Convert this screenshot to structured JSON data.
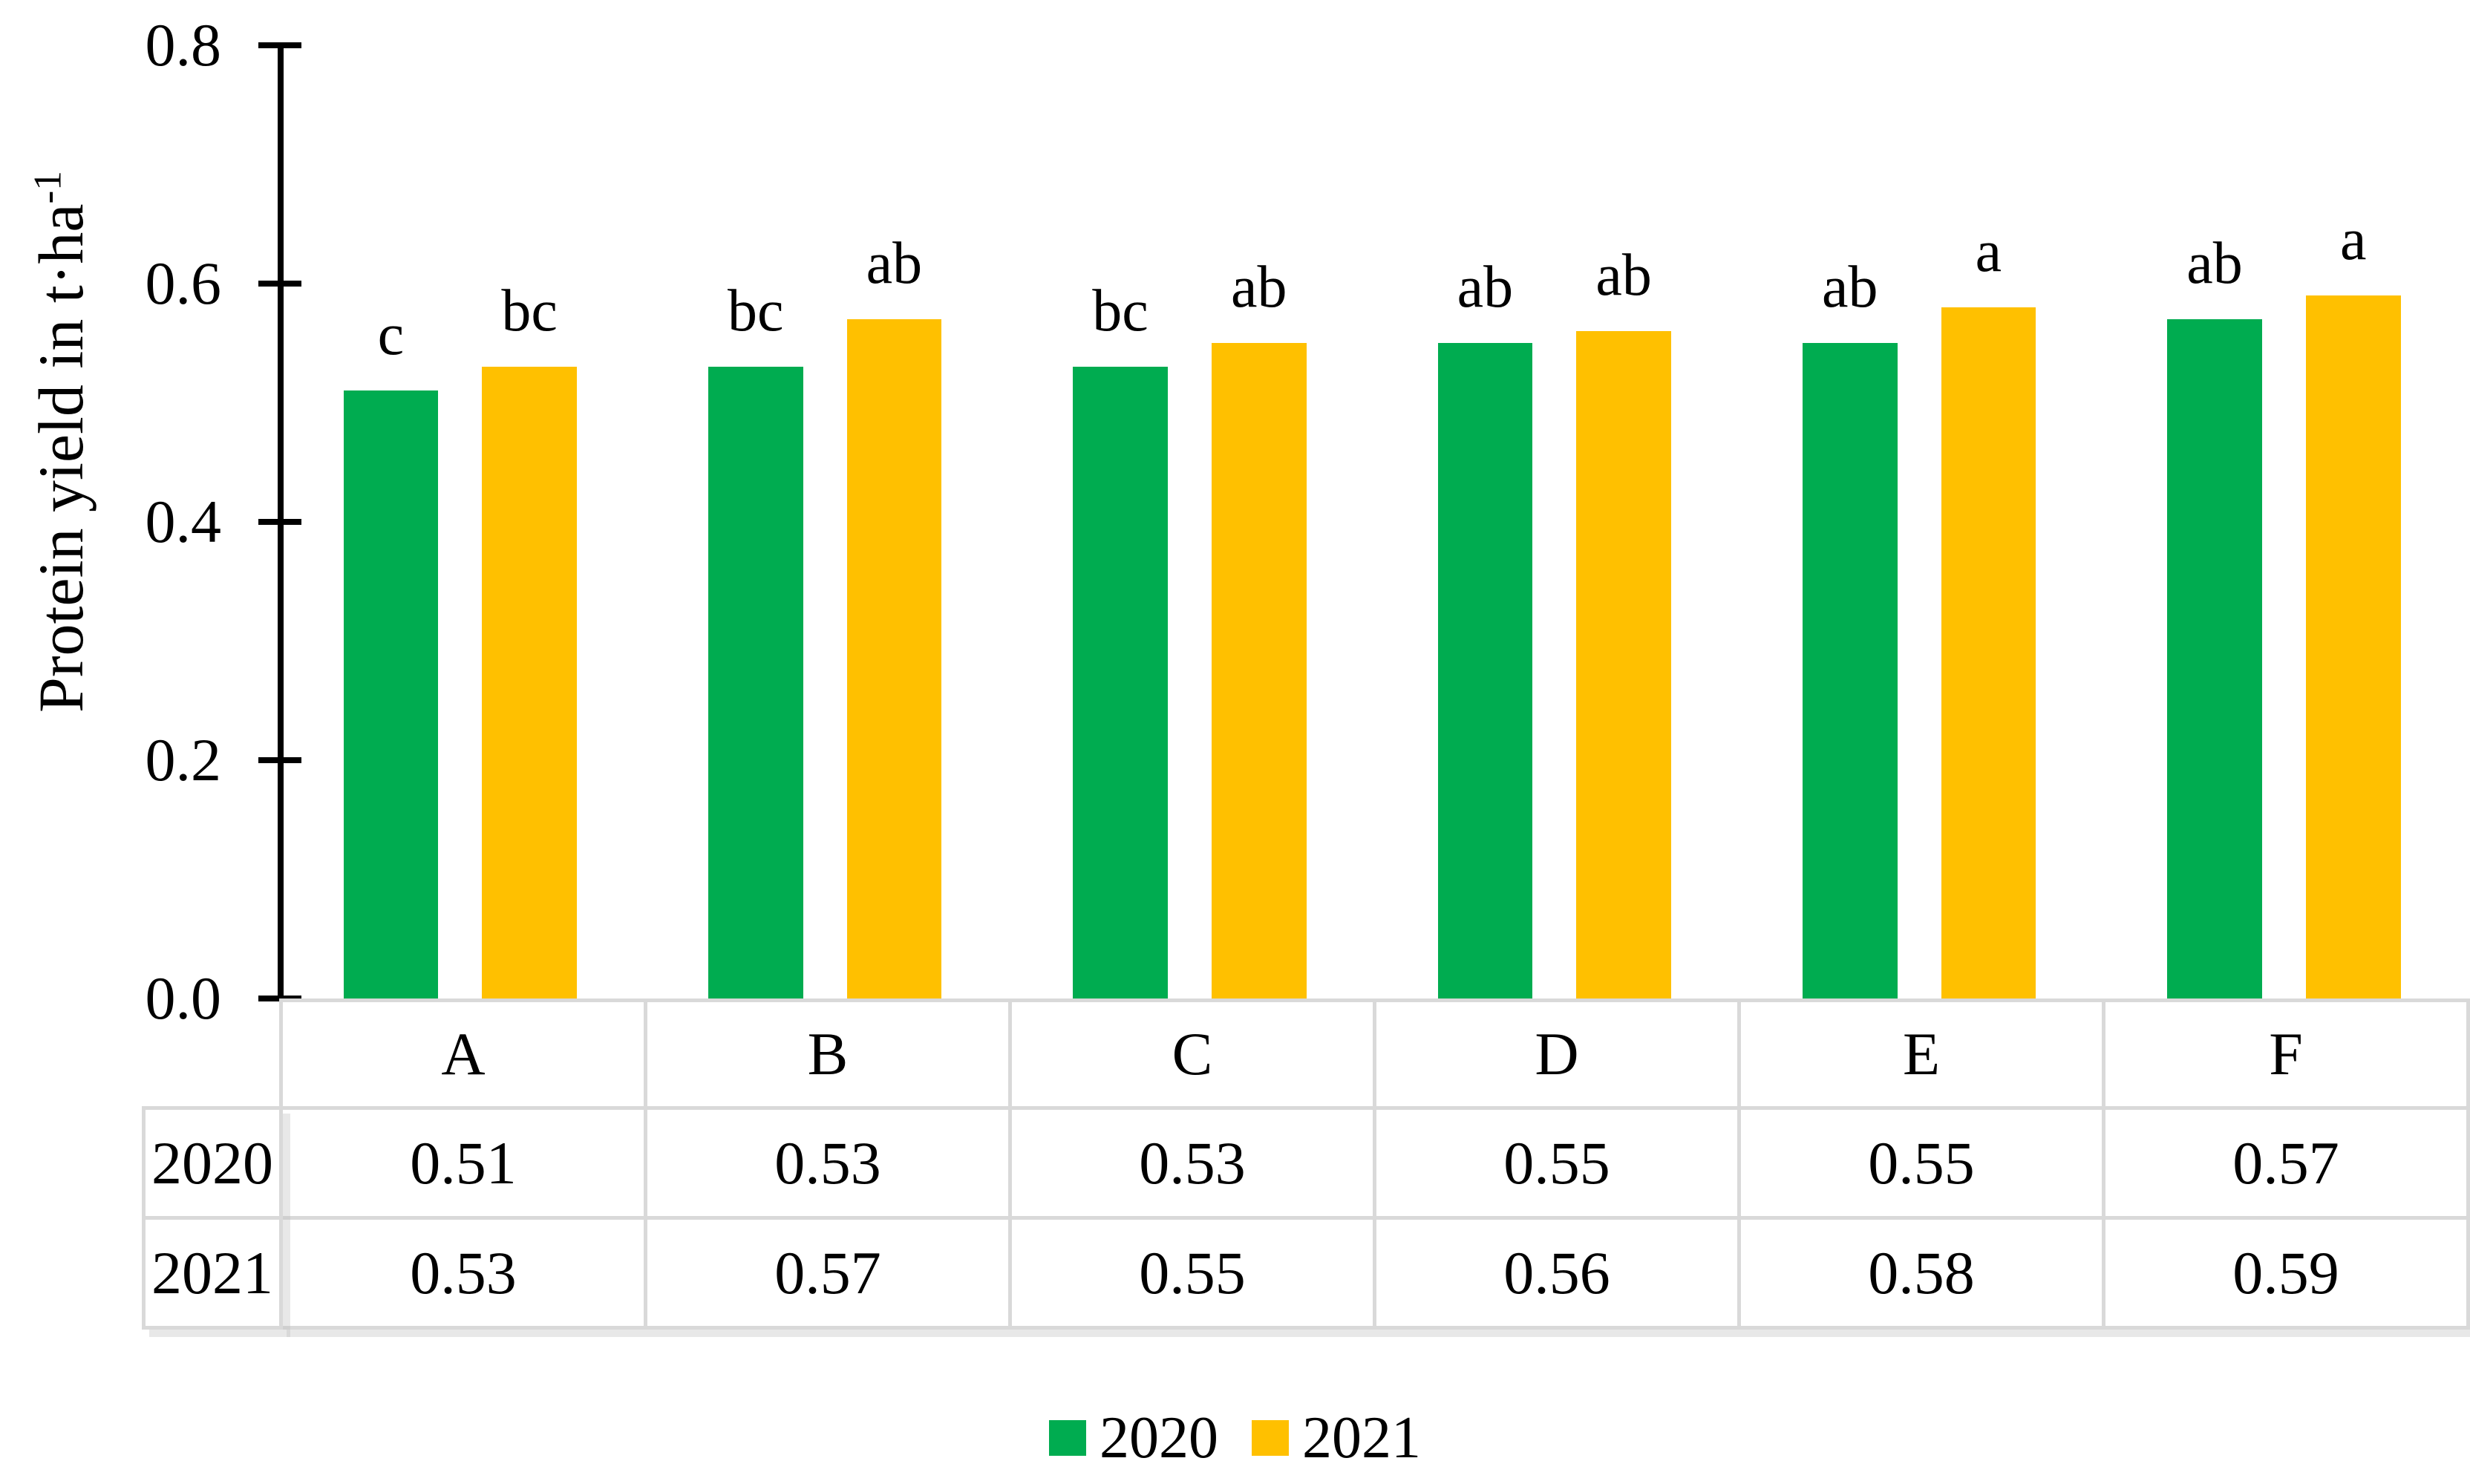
{
  "figure": {
    "background": "#FFFFFF",
    "text_color": "#000000",
    "table_border_color": "#D9D9D9"
  },
  "chart_data": {
    "type": "bar",
    "title": "",
    "xlabel": "",
    "ylabel": "Protein yield in t·ha⁻¹",
    "ylabel_main": "Protein yield in t·ha",
    "ylabel_sup": "-1",
    "ylim": [
      0.0,
      0.8
    ],
    "ytick_values": [
      0.8,
      0.6,
      0.4,
      0.2,
      0.0
    ],
    "ytick_labels": [
      "0.8",
      "0.6",
      "0.4",
      "0.2",
      "0.0"
    ],
    "categories": [
      "A",
      "B",
      "C",
      "D",
      "E",
      "F"
    ],
    "series": [
      {
        "name": "2020",
        "color": "#00AC50",
        "values": [
          0.51,
          0.53,
          0.53,
          0.55,
          0.55,
          0.57
        ],
        "significance_letters": [
          "c",
          "bc",
          "bc",
          "ab",
          "ab",
          "ab"
        ]
      },
      {
        "name": "2021",
        "color": "#FFC000",
        "values": [
          0.53,
          0.57,
          0.55,
          0.56,
          0.58,
          0.59
        ],
        "significance_letters": [
          "bc",
          "ab",
          "ab",
          "ab",
          "a",
          "a"
        ]
      }
    ],
    "legend_position": "bottom",
    "grid": false
  },
  "data_table": {
    "column_headers": [
      "A",
      "B",
      "C",
      "D",
      "E",
      "F"
    ],
    "rows": [
      {
        "label": "2020",
        "values": [
          "0.51",
          "0.53",
          "0.53",
          "0.55",
          "0.55",
          "0.57"
        ]
      },
      {
        "label": "2021",
        "values": [
          "0.53",
          "0.57",
          "0.55",
          "0.56",
          "0.58",
          "0.59"
        ]
      }
    ]
  }
}
